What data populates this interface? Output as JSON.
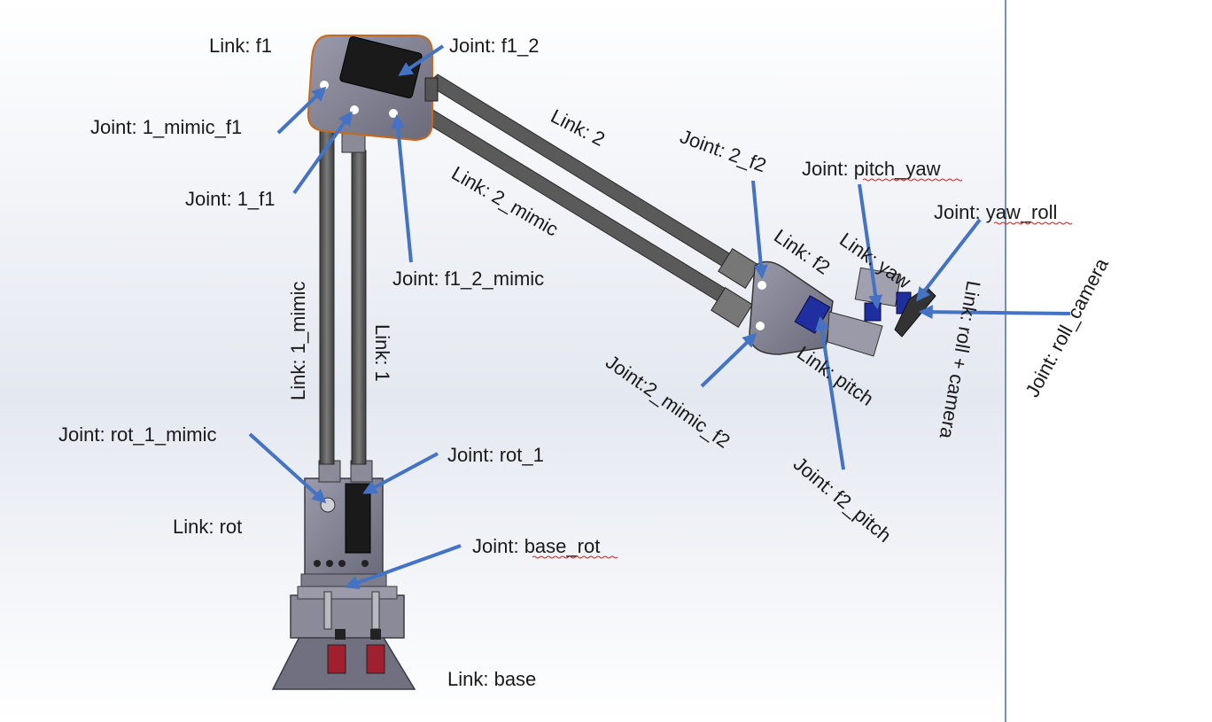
{
  "labels": {
    "link_f1": "Link: f1",
    "joint_f1_2": "Joint: f1_2",
    "joint_1_mimic_f1": "Joint: 1_mimic_f1",
    "joint_1_f1": "Joint: 1_f1",
    "link_2": "Link: 2",
    "link_2_mimic": "Link: 2_mimic",
    "joint_f1_2_mimic": "Joint: f1_2_mimic",
    "joint_2_f2": "Joint: 2_f2",
    "joint_pitch_yaw": "Joint: pitch_yaw",
    "joint_yaw_roll": "Joint: yaw_roll",
    "link_f2": "Link: f2",
    "link_yaw": "Link: yaw",
    "link_roll_camera": "Link: roll + camera",
    "joint_roll_camera": "Joint: roll_camera",
    "link_1_mimic": "Link: 1_mimic",
    "link_1": "Link: 1",
    "joint_2_mimic_f2": "Joint:2_mimic_f2",
    "link_pitch": "Link: pitch",
    "joint_f2_pitch": "Joint: f2_pitch",
    "joint_rot_1_mimic": "Joint: rot_1_mimic",
    "joint_rot_1": "Joint: rot_1",
    "link_rot": "Link: rot",
    "joint_base_rot": "Joint: base_rot",
    "link_base": "Link: base"
  },
  "colors": {
    "arrow": "#4472c4",
    "metal": "#7a7a8a",
    "servo": "#1f2fa0",
    "rod": "#555555"
  }
}
